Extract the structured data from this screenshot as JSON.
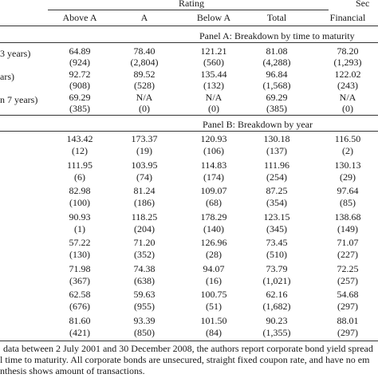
{
  "header": {
    "rating_label": "Rating",
    "sector_label": "Sec",
    "columns": [
      "Above A",
      "A",
      "Below A",
      "Total",
      "Financial"
    ]
  },
  "panel_a": {
    "title": "Panel A: Breakdown by time to maturity",
    "rows": [
      {
        "label": " 3 years)",
        "values": [
          "64.89",
          "78.40",
          "121.21",
          "81.08",
          "78.20"
        ],
        "counts": [
          "(924)",
          "(2,804)",
          "(560)",
          "(4,288)",
          "(1,293)"
        ]
      },
      {
        "label": "ars)",
        "values": [
          "92.72",
          "89.52",
          "135.44",
          "96.84",
          "122.02"
        ],
        "counts": [
          "(908)",
          "(528)",
          "(132)",
          "(1,568)",
          "(243)"
        ]
      },
      {
        "label": "n 7 years)",
        "values": [
          "69.29",
          "N/A",
          "N/A",
          "69.29",
          "N/A"
        ],
        "counts": [
          "(385)",
          "(0)",
          "(0)",
          "(385)",
          "(0)"
        ]
      }
    ]
  },
  "panel_b": {
    "title": "Panel B: Breakdown by year",
    "rows": [
      {
        "values": [
          "143.42",
          "173.37",
          "120.93",
          "130.18",
          "116.50"
        ],
        "counts": [
          "(12)",
          "(19)",
          "(106)",
          "(137)",
          "(2)"
        ]
      },
      {
        "values": [
          "111.95",
          "103.95",
          "114.83",
          "111.96",
          "130.13"
        ],
        "counts": [
          "(6)",
          "(74)",
          "(174)",
          "(254)",
          "(29)"
        ]
      },
      {
        "values": [
          "82.98",
          "81.24",
          "109.07",
          "87.25",
          "97.64"
        ],
        "counts": [
          "(100)",
          "(186)",
          "(68)",
          "(354)",
          "(85)"
        ]
      },
      {
        "values": [
          "90.93",
          "118.25",
          "178.29",
          "123.15",
          "138.68"
        ],
        "counts": [
          "(1)",
          "(204)",
          "(140)",
          "(345)",
          "(149)"
        ]
      },
      {
        "values": [
          "57.22",
          "71.20",
          "126.96",
          "73.45",
          "71.07"
        ],
        "counts": [
          "(130)",
          "(352)",
          "(28)",
          "(510)",
          "(227)"
        ]
      },
      {
        "values": [
          "71.98",
          "74.38",
          "94.07",
          "73.79",
          "72.25"
        ],
        "counts": [
          "(367)",
          "(638)",
          "(16)",
          "(1,021)",
          "(257)"
        ]
      },
      {
        "values": [
          "62.58",
          "59.63",
          "100.75",
          "62.16",
          "54.68"
        ],
        "counts": [
          "(676)",
          "(955)",
          "(51)",
          "(1,682)",
          "(297)"
        ]
      },
      {
        "values": [
          "81.60",
          "93.39",
          "101.50",
          "90.23",
          "88.01"
        ],
        "counts": [
          "(421)",
          "(850)",
          "(84)",
          "(1,355)",
          "(297)"
        ]
      }
    ]
  },
  "footnote": {
    "line1": "data between 2 July 2001 and 30 December 2008, the authors report corporate bond yield spread",
    "line2": "l time to maturity. All corporate bonds are unsecured, straight fixed coupon rate, and have no em",
    "line3": "nthesis shows amount of transactions."
  }
}
